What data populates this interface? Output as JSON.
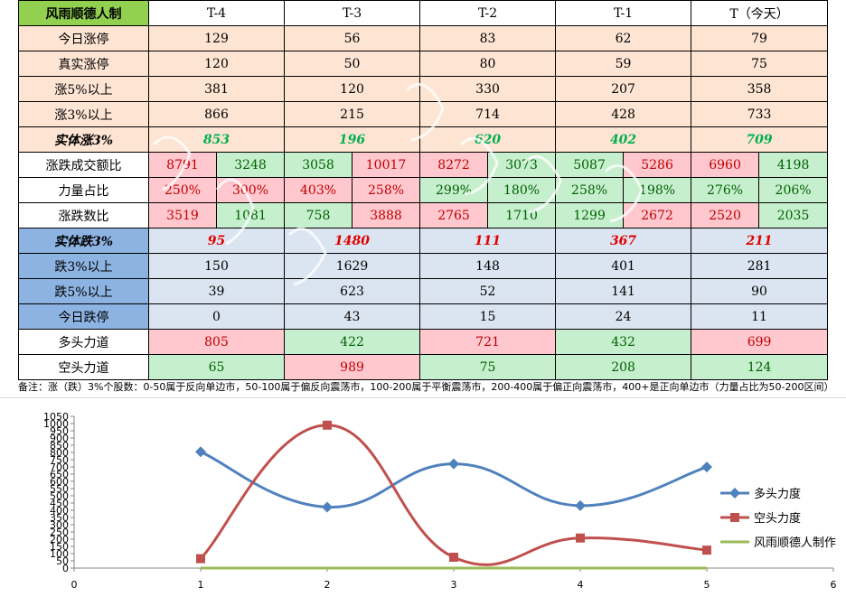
{
  "table": {
    "title": "风雨顺德人制",
    "columns": [
      "T-4",
      "T-3",
      "T-2",
      "T-1",
      "T（今天）"
    ],
    "single_rows": [
      {
        "label": "今日涨停",
        "values": [
          "129",
          "56",
          "83",
          "62",
          "79"
        ]
      },
      {
        "label": "真实涨停",
        "values": [
          "120",
          "50",
          "80",
          "59",
          "75"
        ]
      },
      {
        "label": "涨5%以上",
        "values": [
          "381",
          "120",
          "330",
          "207",
          "358"
        ]
      },
      {
        "label": "涨3%以上",
        "values": [
          "866",
          "215",
          "714",
          "428",
          "733"
        ]
      },
      {
        "label": "实体涨3%",
        "values": [
          "853",
          "196",
          "620",
          "402",
          "709"
        ]
      }
    ],
    "pair_rows": [
      {
        "label": "涨跌成交额比",
        "values": [
          "8791",
          "3248",
          "3058",
          "10017",
          "8272",
          "3073",
          "5087",
          "5286",
          "6960",
          "4198"
        ]
      },
      {
        "label": "力量占比",
        "values": [
          "250%",
          "300%",
          "403%",
          "258%",
          "299%",
          "180%",
          "258%",
          "198%",
          "276%",
          "206%"
        ]
      },
      {
        "label": "涨跌数比",
        "values": [
          "3519",
          "1081",
          "758",
          "3888",
          "2765",
          "1710",
          "1299",
          "2672",
          "2520",
          "2035"
        ]
      }
    ],
    "down_rows": [
      {
        "label": "实体跌3%",
        "values": [
          "95",
          "1480",
          "111",
          "367",
          "211"
        ]
      },
      {
        "label": "跌3%以上",
        "values": [
          "150",
          "1629",
          "148",
          "401",
          "281"
        ]
      },
      {
        "label": "跌5%以上",
        "values": [
          "39",
          "623",
          "52",
          "141",
          "90"
        ]
      },
      {
        "label": "今日跌停",
        "values": [
          "0",
          "43",
          "15",
          "24",
          "11"
        ]
      }
    ],
    "force_rows": [
      {
        "label": "多头力道",
        "values": [
          "805",
          "422",
          "721",
          "432",
          "699"
        ]
      },
      {
        "label": "空头力道",
        "values": [
          "65",
          "989",
          "75",
          "208",
          "124"
        ]
      }
    ]
  },
  "note": "备注：涨（跌）3%个股数：0-50属于反向单边市，50-100属于偏反向震荡市，100-200属于平衡震荡市，200-400属于偏正向震荡市，400+是正向单边市（力量占比为50-200区间）",
  "watermark": "风雨顺德人",
  "colors": {
    "bull": "#4f81bd",
    "bear": "#c0504d",
    "flat": "#9bbb59",
    "pink": "#ffc7ce",
    "green": "#c6efce",
    "peach": "#fde4d3",
    "blue": "#dbe5f1"
  },
  "chart_data": {
    "type": "line",
    "x": [
      1,
      2,
      3,
      4,
      5
    ],
    "series": [
      {
        "name": "多头力度",
        "values": [
          805,
          422,
          721,
          432,
          699
        ],
        "color": "#4f81bd",
        "marker": "diamond"
      },
      {
        "name": "空头力度",
        "values": [
          65,
          989,
          75,
          208,
          124
        ],
        "color": "#c0504d",
        "marker": "square"
      },
      {
        "name": "风雨顺德人制作",
        "values": [
          0,
          0,
          0,
          0,
          0
        ],
        "color": "#9bbb59",
        "marker": "none"
      }
    ],
    "xlim": [
      0,
      6
    ],
    "ylim": [
      0,
      1050
    ],
    "xticks": [
      "0",
      "1",
      "2",
      "3",
      "4",
      "5",
      "6"
    ],
    "yticks": [
      "0",
      "50",
      "100",
      "150",
      "200",
      "250",
      "300",
      "350",
      "400",
      "450",
      "500",
      "550",
      "600",
      "650",
      "700",
      "750",
      "800",
      "850",
      "900",
      "950",
      "1000",
      "1050"
    ],
    "smooth": true,
    "legend": "right"
  }
}
